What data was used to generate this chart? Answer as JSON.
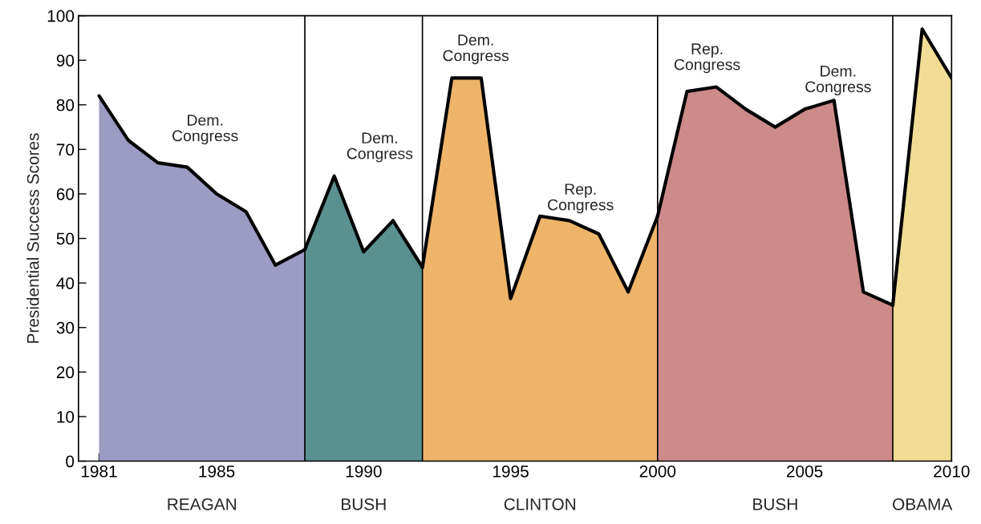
{
  "chart_data": {
    "type": "area",
    "ylabel": "Presidential Success Scores",
    "series": [
      {
        "name": "REAGAN",
        "color": "#9c9bc2",
        "x": [
          1981,
          1982,
          1983,
          1984,
          1985,
          1986,
          1987,
          1988
        ],
        "values": [
          82,
          72,
          67,
          66,
          60,
          56,
          44,
          47.5
        ]
      },
      {
        "name": "BUSH",
        "color": "#5a9190",
        "x": [
          1988,
          1989,
          1990,
          1991,
          1992
        ],
        "values": [
          47.5,
          64,
          47,
          54,
          43.5
        ]
      },
      {
        "name": "CLINTON",
        "color": "#edb46a",
        "x": [
          1992,
          1993,
          1994,
          1995,
          1996,
          1997,
          1998,
          1999,
          2000
        ],
        "values": [
          43.5,
          86,
          86,
          36.5,
          55,
          54,
          51,
          38,
          55
        ]
      },
      {
        "name": "BUSH",
        "color": "#cc8a89",
        "x": [
          2000,
          2001,
          2002,
          2003,
          2004,
          2005,
          2006,
          2007,
          2008
        ],
        "values": [
          55,
          83,
          84,
          79,
          75,
          79,
          81,
          38,
          35
        ]
      },
      {
        "name": "OBAMA",
        "color": "#f0dc94",
        "x": [
          2008,
          2009,
          2010
        ],
        "values": [
          35,
          97,
          86
        ]
      }
    ],
    "annotations": [
      "Dem.\nCongress",
      "Dem.\nCongress",
      "Dem.\nCongress",
      "Rep.\nCongress",
      "Rep.\nCongress",
      "Dem.\nCongress"
    ],
    "ref_lines": [
      {
        "axis": "x",
        "value": 1988,
        "color": "#000000"
      },
      {
        "axis": "x",
        "value": 1992,
        "color": "#000000"
      },
      {
        "axis": "x",
        "value": 2000,
        "color": "#000000"
      },
      {
        "axis": "x",
        "value": 2008,
        "color": "#000000"
      }
    ],
    "xlim": [
      1980.3,
      2010
    ],
    "ylim": [
      0,
      100
    ],
    "xticks": [
      1981,
      {
        "value": 1982,
        "label": null
      },
      {
        "value": 1983,
        "label": null
      },
      {
        "value": 1984,
        "label": null
      },
      1985,
      {
        "value": 1986,
        "label": null
      },
      {
        "value": 1987,
        "label": null
      },
      {
        "value": 1988,
        "label": null
      },
      {
        "value": 1989,
        "label": null
      },
      1990,
      {
        "value": 1991,
        "label": null
      },
      {
        "value": 1992,
        "label": null
      },
      {
        "value": 1993,
        "label": null
      },
      {
        "value": 1994,
        "label": null
      },
      1995,
      {
        "value": 1996,
        "label": null
      },
      {
        "value": 1997,
        "label": null
      },
      {
        "value": 1998,
        "label": null
      },
      {
        "value": 1999,
        "label": null
      },
      2000,
      {
        "value": 2001,
        "label": null
      },
      {
        "value": 2002,
        "label": null
      },
      {
        "value": 2003,
        "label": null
      },
      {
        "value": 2004,
        "label": null
      },
      2005,
      {
        "value": 2006,
        "label": null
      },
      {
        "value": 2007,
        "label": null
      },
      {
        "value": 2008,
        "label": null
      },
      {
        "value": 2009,
        "label": null
      },
      2010
    ],
    "yticks": [
      0,
      10,
      20,
      30,
      40,
      50,
      60,
      70,
      80,
      90,
      100
    ],
    "grid": false,
    "legend": false
  }
}
